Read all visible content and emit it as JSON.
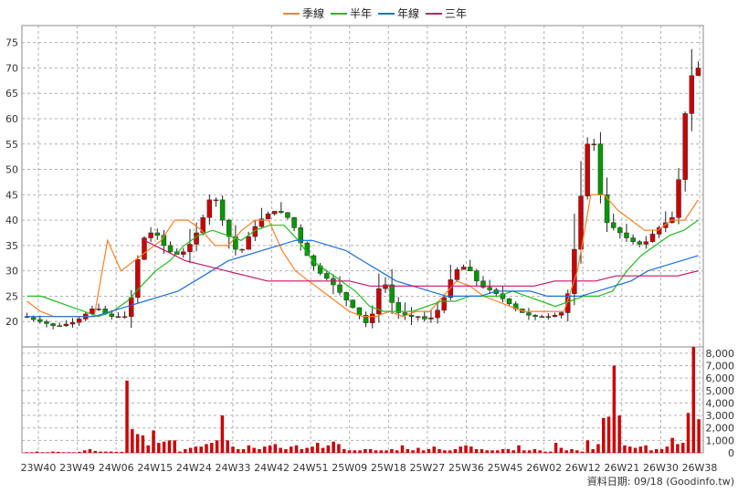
{
  "legend": [
    {
      "label": "季線",
      "color": "#ff7f27"
    },
    {
      "label": "半年",
      "color": "#22bb22"
    },
    {
      "label": "年線",
      "color": "#1f6fd6"
    },
    {
      "label": "三年",
      "color": "#cc1166"
    }
  ],
  "footer": "資料日期: 09/18  (Goodinfo.tw)",
  "chart_data": [
    {
      "type": "candlestick",
      "title": "",
      "ylim": [
        15,
        78
      ],
      "yticks": [
        20,
        25,
        30,
        35,
        40,
        45,
        50,
        55,
        60,
        65,
        70,
        75
      ],
      "grid": true,
      "legend_position": "top-center",
      "up_color": "#cc0000",
      "down_color": "#009900",
      "xtick_labels": [
        "23W40",
        "23W49",
        "24W06",
        "24W15",
        "24W24",
        "24W33",
        "24W42",
        "24W51",
        "25W09",
        "25W18",
        "25W27",
        "25W36",
        "25W45",
        "26W02",
        "26W12",
        "26W21",
        "26W30",
        "26W38"
      ],
      "price_points": [
        [
          0,
          21
        ],
        [
          5,
          19
        ],
        [
          8,
          20
        ],
        [
          11,
          23
        ],
        [
          13,
          21
        ],
        [
          16,
          21
        ],
        [
          18,
          36
        ],
        [
          20,
          38
        ],
        [
          22,
          34
        ],
        [
          24,
          33
        ],
        [
          26,
          36
        ],
        [
          28,
          42
        ],
        [
          29,
          46
        ],
        [
          31,
          38
        ],
        [
          33,
          33
        ],
        [
          35,
          38
        ],
        [
          37,
          41
        ],
        [
          39,
          42
        ],
        [
          41,
          40
        ],
        [
          43,
          34
        ],
        [
          45,
          30
        ],
        [
          47,
          28
        ],
        [
          49,
          25
        ],
        [
          51,
          22
        ],
        [
          53,
          19
        ],
        [
          55,
          29
        ],
        [
          57,
          22
        ],
        [
          59,
          21
        ],
        [
          61,
          21
        ],
        [
          62,
          20
        ],
        [
          64,
          23
        ],
        [
          66,
          30
        ],
        [
          68,
          31
        ],
        [
          70,
          27
        ],
        [
          72,
          26
        ],
        [
          74,
          24
        ],
        [
          76,
          22
        ],
        [
          78,
          21
        ],
        [
          80,
          21
        ],
        [
          81,
          21
        ],
        [
          83,
          22
        ],
        [
          84,
          29
        ],
        [
          86,
          50
        ],
        [
          87,
          60
        ],
        [
          88,
          50
        ],
        [
          89,
          40
        ],
        [
          91,
          38
        ],
        [
          93,
          36
        ],
        [
          95,
          35
        ],
        [
          97,
          38
        ],
        [
          99,
          40
        ],
        [
          100,
          41
        ],
        [
          101,
          55
        ],
        [
          102,
          67
        ],
        [
          103,
          70
        ]
      ],
      "series": [
        {
          "name": "季線",
          "values": [
            24,
            22,
            21,
            21,
            21,
            21,
            36,
            30,
            32,
            34,
            36,
            40,
            40,
            38,
            35,
            35,
            38,
            40,
            40,
            34,
            30,
            28,
            26,
            24,
            22,
            21,
            21,
            22,
            21,
            22,
            22,
            25,
            28,
            27,
            25,
            24,
            23,
            22,
            22,
            22,
            22,
            30,
            45,
            45,
            42,
            40,
            38,
            38,
            40,
            40,
            44
          ]
        },
        {
          "name": "半年",
          "values": [
            25,
            25,
            24,
            23,
            22,
            21,
            22,
            24,
            27,
            30,
            32,
            35,
            37,
            38,
            37,
            36,
            38,
            39,
            39,
            36,
            32,
            30,
            28,
            26,
            23,
            22,
            22,
            22,
            23,
            24,
            24,
            25,
            25,
            25,
            26,
            25,
            24,
            23,
            24,
            25,
            25,
            26,
            30,
            33,
            35,
            37,
            38,
            40
          ]
        },
        {
          "name": "年線",
          "values": [
            21,
            21,
            21,
            21,
            21,
            22,
            23,
            24,
            25,
            26,
            28,
            30,
            32,
            33,
            34,
            35,
            36,
            36,
            35,
            34,
            32,
            30,
            28,
            27,
            26,
            25,
            25,
            25,
            26,
            26,
            26,
            25,
            25,
            25,
            26,
            27,
            28,
            30,
            31,
            32,
            33
          ]
        },
        {
          "name": "三年",
          "values": [
            36,
            34,
            32,
            31,
            30,
            29,
            28,
            28,
            28,
            28,
            28,
            27,
            27,
            27,
            27,
            27,
            27,
            27,
            27,
            27,
            28,
            28,
            28,
            29,
            29,
            29,
            29,
            30
          ]
        }
      ]
    },
    {
      "type": "bar",
      "title": "",
      "ylim": [
        0,
        8500
      ],
      "yticks": [
        0,
        1000,
        2000,
        3000,
        4000,
        5000,
        6000,
        7000,
        8000
      ],
      "ytick_labels": [
        "0",
        "1,000",
        "2,000",
        "3,000",
        "4,000",
        "5,000",
        "6,000",
        "7,000",
        "8,000"
      ],
      "grid": true,
      "bar_color": "#cc0000",
      "series": [
        {
          "name": "",
          "values": [
            50,
            50,
            100,
            50,
            50,
            100,
            80,
            50,
            50,
            50,
            80,
            200,
            300,
            150,
            100,
            100,
            100,
            80,
            80,
            5800,
            1900,
            1500,
            1400,
            600,
            1800,
            800,
            900,
            1000,
            1000,
            100,
            300,
            400,
            500,
            500,
            700,
            800,
            1000,
            3000,
            1000,
            500,
            300,
            300,
            600,
            400,
            300,
            500,
            600,
            700,
            400,
            300,
            500,
            600,
            300,
            400,
            500,
            800,
            400,
            600,
            900,
            700,
            300,
            200,
            200,
            200,
            300,
            300,
            200,
            200,
            200,
            300,
            200,
            600,
            300,
            200,
            400,
            200,
            300,
            500,
            300,
            200,
            200,
            300,
            500,
            600,
            500,
            300,
            300,
            200,
            200,
            200,
            300,
            300,
            200,
            600,
            200,
            200,
            300,
            200,
            100,
            100,
            800,
            400,
            200,
            300,
            200,
            100,
            1000,
            300,
            700,
            2800,
            2900,
            7000,
            3000,
            600,
            500,
            400,
            500,
            600,
            200,
            300,
            300,
            500,
            1200,
            700,
            800,
            3200,
            8500,
            2700
          ]
        }
      ]
    }
  ]
}
